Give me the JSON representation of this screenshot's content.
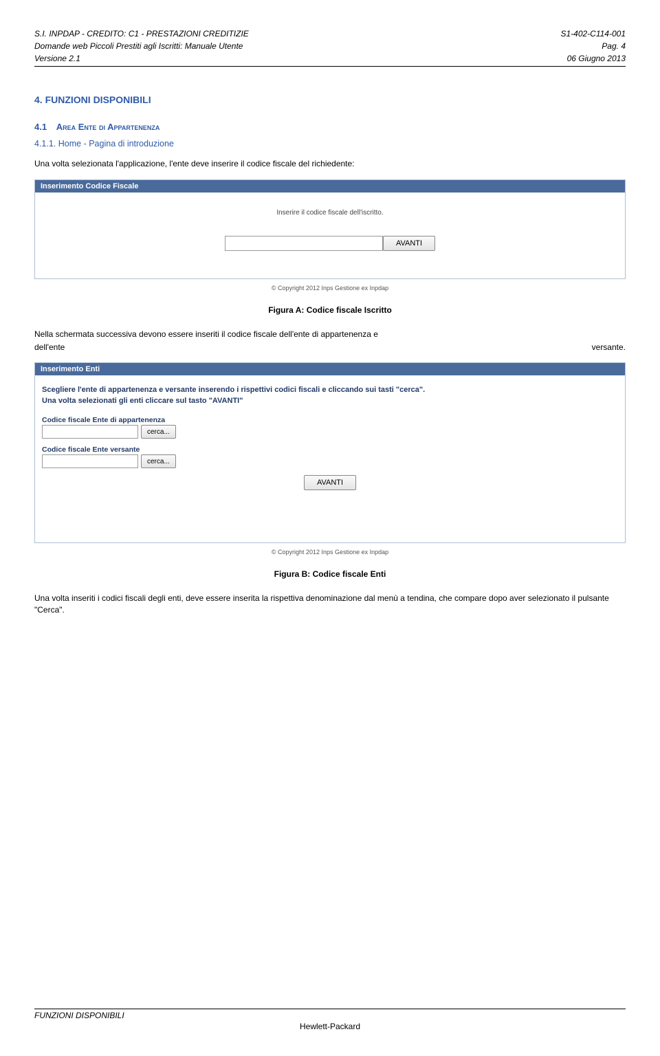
{
  "header": {
    "left1": "S.I. INPDAP - CREDITO: C1 - PRESTAZIONI CREDITIZIE",
    "right1": "S1-402-C114-001",
    "left2": "Domande web Piccoli Prestiti agli Iscritti: Manuale Utente",
    "right2": "Pag. 4",
    "left3": "Versione 2.1",
    "right3": "06 Giugno 2013"
  },
  "section": {
    "num": "4.",
    "title": "FUNZIONI DISPONIBILI"
  },
  "subsection": {
    "num": "4.1",
    "title": "Area Ente di Appartenenza"
  },
  "subsub": {
    "num": "4.1.1.",
    "title": "Home - Pagina di introduzione"
  },
  "para1": "Una volta selezionata l'applicazione, l'ente deve inserire il codice fiscale del richiedente:",
  "panelA": {
    "header": "Inserimento Codice Fiscale",
    "instruction": "Inserire il codice fiscale dell'iscritto.",
    "btn": "AVANTI",
    "copyright": "© Copyright 2012 Inps Gestione ex Inpdap"
  },
  "captionA": "Figura A: Codice fiscale Iscritto",
  "para2_left": "Nella schermata successiva devono essere inseriti il codice fiscale dell'ente di appartenenza e",
  "para2_a": "dell'ente",
  "para2_b": "versante.",
  "panelB": {
    "header": "Inserimento Enti",
    "line1": "Scegliere l'ente di appartenenza e versante inserendo i rispettivi codici fiscali e cliccando sui tasti \"cerca\".",
    "line2": "Una volta selezionati gli enti cliccare sul tasto \"AVANTI\"",
    "label1": "Codice fiscale Ente di appartenenza",
    "label2": "Codice fiscale Ente versante",
    "cerca": "cerca...",
    "avanti": "AVANTI",
    "copyright": "© Copyright 2012 Inps Gestione ex Inpdap"
  },
  "captionB": "Figura B: Codice fiscale Enti",
  "para3": "Una volta inseriti i codici fiscali degli enti, deve essere inserita la rispettiva denominazione dal menù a tendina, che compare dopo aver selezionato il pulsante \"Cerca\".",
  "footer": {
    "left": "FUNZIONI DISPONIBILI",
    "center": "Hewlett-Packard"
  }
}
